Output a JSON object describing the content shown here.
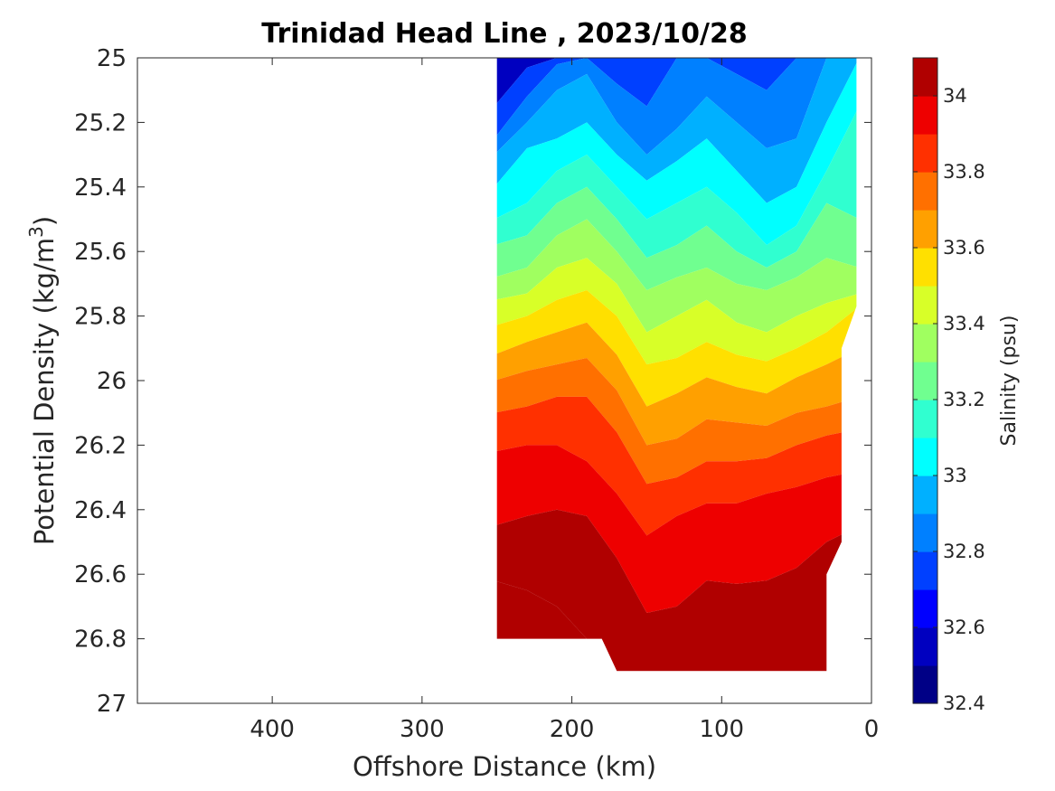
{
  "chart_data": {
    "type": "heatmap",
    "subtype": "filled-contour",
    "title": "Trinidad Head Line , 2023/10/28",
    "xlabel": "Offshore Distance (km)",
    "ylabel_main": "Potential Density (kg/m",
    "ylabel_sup": "3",
    "ylabel_close": ")",
    "colorbar_label": "Salinity (psu)",
    "x_axis": {
      "range": [
        490,
        0
      ],
      "reversed": true,
      "ticks": [
        400,
        300,
        200,
        100,
        0
      ],
      "tick_labels": [
        "400",
        "300",
        "200",
        "100",
        "0"
      ]
    },
    "y_axis": {
      "range": [
        25,
        27
      ],
      "reversed": true,
      "ticks": [
        25,
        25.2,
        25.4,
        25.6,
        25.8,
        26,
        26.2,
        26.4,
        26.6,
        26.8,
        27
      ],
      "tick_labels": [
        "25",
        "25.2",
        "25.4",
        "25.6",
        "25.8",
        "26",
        "26.2",
        "26.4",
        "26.6",
        "26.8",
        "27"
      ]
    },
    "colorbar": {
      "range": [
        32.4,
        34.1
      ],
      "levels": [
        32.4,
        32.5,
        32.6,
        32.7,
        32.8,
        32.9,
        33.0,
        33.1,
        33.2,
        33.3,
        33.4,
        33.5,
        33.6,
        33.7,
        33.8,
        33.9,
        34.0,
        34.1
      ],
      "colors": [
        "#000086",
        "#0000c0",
        "#0000ff",
        "#0040ff",
        "#0080ff",
        "#00b0ff",
        "#00ffff",
        "#30ffd0",
        "#70ff90",
        "#a0ff60",
        "#d8ff28",
        "#ffe000",
        "#ffa000",
        "#ff7000",
        "#ff3000",
        "#ee0000",
        "#b00000"
      ],
      "ticks": [
        32.4,
        32.6,
        32.8,
        33.0,
        33.2,
        33.4,
        33.6,
        33.8,
        34.0
      ],
      "tick_labels": [
        "32.4",
        "32.6",
        "32.8",
        "33",
        "33.2",
        "33.4",
        "33.6",
        "33.8",
        "34"
      ]
    },
    "section_outline": [
      [
        250,
        25.0
      ],
      [
        10,
        25.0
      ],
      [
        10,
        25.77
      ],
      [
        20,
        25.9
      ],
      [
        20,
        26.5
      ],
      [
        30,
        26.6
      ],
      [
        30,
        26.9
      ],
      [
        170,
        26.9
      ],
      [
        180,
        26.8
      ],
      [
        250,
        26.8
      ]
    ],
    "contour_depth_profiles": {
      "x": [
        250,
        230,
        210,
        190,
        170,
        150,
        130,
        110,
        90,
        70,
        50,
        30,
        10
      ],
      "isohalines": [
        {
          "value": 32.7,
          "y": [
            25.15,
            25.03,
            25.0,
            25.0,
            25.0,
            25.0,
            25.0,
            25.0,
            25.0,
            25.0,
            25.0,
            25.0,
            25.0
          ]
        },
        {
          "value": 32.8,
          "y": [
            25.25,
            25.12,
            25.02,
            25.0,
            25.08,
            25.15,
            25.0,
            25.0,
            25.05,
            25.1,
            25.0,
            25.0,
            25.0
          ]
        },
        {
          "value": 32.9,
          "y": [
            25.3,
            25.2,
            25.1,
            25.05,
            25.2,
            25.3,
            25.22,
            25.12,
            25.2,
            25.28,
            25.25,
            25.0,
            25.0
          ]
        },
        {
          "value": 33.0,
          "y": [
            25.4,
            25.28,
            25.25,
            25.2,
            25.3,
            25.38,
            25.32,
            25.25,
            25.35,
            25.45,
            25.4,
            25.2,
            25.0
          ]
        },
        {
          "value": 33.1,
          "y": [
            25.5,
            25.45,
            25.35,
            25.3,
            25.4,
            25.5,
            25.45,
            25.4,
            25.48,
            25.58,
            25.52,
            25.35,
            25.15
          ]
        },
        {
          "value": 33.2,
          "y": [
            25.58,
            25.55,
            25.45,
            25.4,
            25.5,
            25.62,
            25.58,
            25.52,
            25.6,
            25.65,
            25.6,
            25.45,
            25.5
          ]
        },
        {
          "value": 33.3,
          "y": [
            25.68,
            25.65,
            25.55,
            25.5,
            25.6,
            25.72,
            25.68,
            25.65,
            25.7,
            25.72,
            25.68,
            25.62,
            25.65
          ]
        },
        {
          "value": 33.4,
          "y": [
            25.75,
            25.73,
            25.65,
            25.62,
            25.7,
            25.85,
            25.8,
            25.75,
            25.82,
            25.85,
            25.8,
            25.76,
            25.73
          ]
        },
        {
          "value": 33.5,
          "y": [
            25.83,
            25.8,
            25.75,
            25.72,
            25.8,
            25.95,
            25.93,
            25.88,
            25.92,
            25.94,
            25.9,
            25.85,
            25.77
          ]
        },
        {
          "value": 33.6,
          "y": [
            25.92,
            25.88,
            25.85,
            25.82,
            25.92,
            26.08,
            26.04,
            25.99,
            26.02,
            26.04,
            25.99,
            25.95,
            25.9
          ]
        },
        {
          "value": 33.7,
          "y": [
            26.0,
            25.97,
            25.95,
            25.93,
            26.03,
            26.2,
            26.18,
            26.12,
            26.13,
            26.14,
            26.1,
            26.08,
            26.05
          ]
        },
        {
          "value": 33.8,
          "y": [
            26.1,
            26.08,
            26.05,
            26.05,
            26.16,
            26.32,
            26.3,
            26.25,
            26.25,
            26.24,
            26.2,
            26.17,
            26.15
          ]
        },
        {
          "value": 33.9,
          "y": [
            26.22,
            26.2,
            26.2,
            26.25,
            26.35,
            26.48,
            26.42,
            26.38,
            26.38,
            26.35,
            26.33,
            26.3,
            26.28
          ]
        },
        {
          "value": 34.0,
          "y": [
            26.45,
            26.42,
            26.4,
            26.42,
            26.55,
            26.72,
            26.7,
            26.62,
            26.63,
            26.62,
            26.58,
            26.5,
            26.45
          ]
        },
        {
          "value": 34.1,
          "y": [
            26.62,
            26.65,
            26.7,
            26.8,
            26.9,
            26.9,
            26.9,
            26.9,
            26.9,
            26.9,
            26.9,
            26.9,
            26.9
          ]
        }
      ]
    }
  }
}
